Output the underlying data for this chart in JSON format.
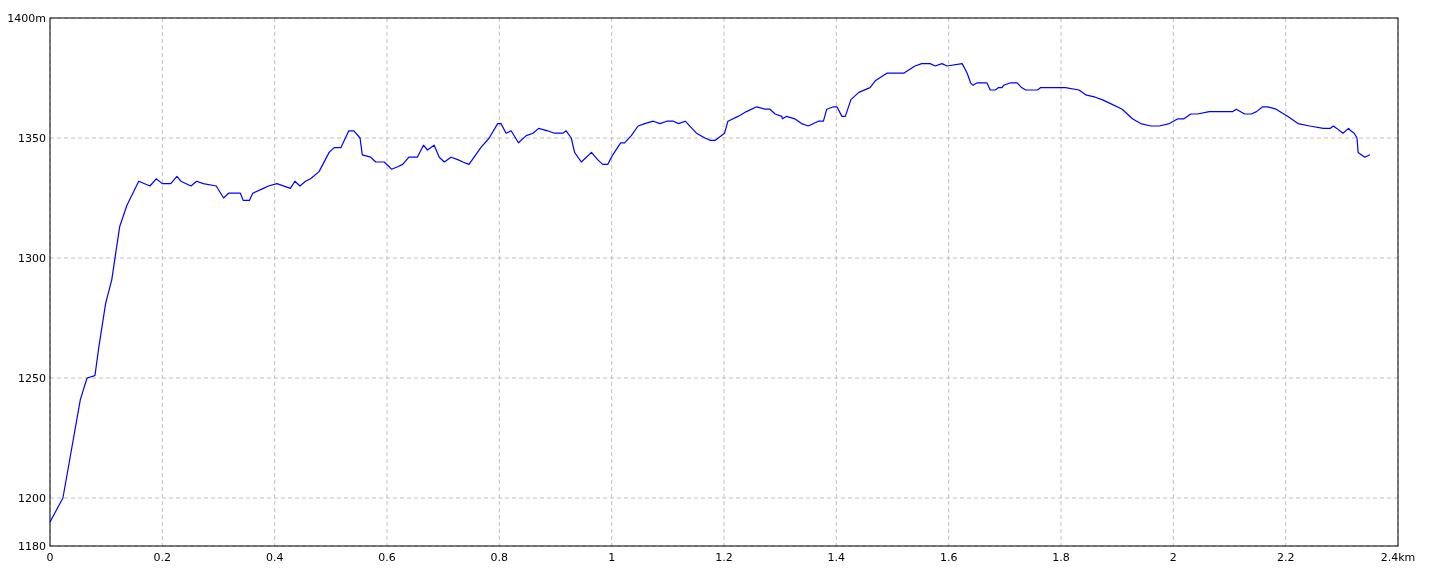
{
  "chart_data": {
    "type": "line",
    "x": [
      0,
      0.023,
      0.054,
      0.066,
      0.08,
      0.087,
      0.099,
      0.11,
      0.124,
      0.137,
      0.158,
      0.178,
      0.189,
      0.2,
      0.215,
      0.226,
      0.233,
      0.251,
      0.261,
      0.273,
      0.296,
      0.309,
      0.318,
      0.339,
      0.344,
      0.355,
      0.361,
      0.38,
      0.389,
      0.404,
      0.428,
      0.436,
      0.445,
      0.455,
      0.464,
      0.479,
      0.497,
      0.506,
      0.518,
      0.532,
      0.541,
      0.552,
      0.556,
      0.571,
      0.58,
      0.595,
      0.604,
      0.608,
      0.619,
      0.628,
      0.639,
      0.654,
      0.665,
      0.672,
      0.684,
      0.693,
      0.702,
      0.714,
      0.726,
      0.735,
      0.746,
      0.767,
      0.782,
      0.797,
      0.803,
      0.812,
      0.821,
      0.834,
      0.848,
      0.86,
      0.87,
      0.886,
      0.898,
      0.913,
      0.919,
      0.928,
      0.934,
      0.946,
      0.964,
      0.975,
      0.984,
      0.993,
      1.002,
      1.016,
      1.023,
      1.035,
      1.047,
      1.059,
      1.074,
      1.086,
      1.098,
      1.11,
      1.119,
      1.131,
      1.143,
      1.151,
      1.166,
      1.176,
      1.184,
      1.201,
      1.207,
      1.225,
      1.24,
      1.258,
      1.273,
      1.282,
      1.291,
      1.303,
      1.304,
      1.311,
      1.326,
      1.338,
      1.35,
      1.368,
      1.377,
      1.383,
      1.395,
      1.401,
      1.41,
      1.416,
      1.426,
      1.44,
      1.46,
      1.47,
      1.49,
      1.52,
      1.54,
      1.552,
      1.567,
      1.576,
      1.588,
      1.597,
      1.624,
      1.633,
      1.639,
      1.643,
      1.651,
      1.668,
      1.674,
      1.683,
      1.689,
      1.695,
      1.698,
      1.71,
      1.722,
      1.73,
      1.737,
      1.758,
      1.764,
      1.808,
      1.832,
      1.844,
      1.861,
      1.873,
      1.891,
      1.909,
      1.927,
      1.942,
      1.96,
      1.975,
      1.993,
      2.008,
      2.019,
      2.031,
      2.043,
      2.064,
      2.106,
      2.112,
      2.127,
      2.139,
      2.148,
      2.159,
      2.168,
      2.183,
      2.204,
      2.222,
      2.243,
      2.267,
      2.279,
      2.285,
      2.291,
      2.302,
      2.312,
      2.316,
      2.322,
      2.327,
      2.329,
      2.341,
      2.35
    ],
    "series": [
      {
        "color": "#0000ff",
        "values": [
          1190,
          1200,
          1241,
          1250,
          1251,
          1263,
          1281,
          1291,
          1313,
          1322,
          1332,
          1330,
          1333,
          1331,
          1331,
          1334,
          1332,
          1330,
          1332,
          1331,
          1330,
          1325,
          1327,
          1327,
          1324,
          1324,
          1327,
          1329,
          1330,
          1331,
          1329,
          1332,
          1330,
          1332,
          1333,
          1336,
          1344,
          1346,
          1346,
          1353,
          1353,
          1350,
          1343,
          1342,
          1340,
          1340,
          1338,
          1337,
          1338,
          1339,
          1342,
          1342,
          1347,
          1345,
          1347,
          1342,
          1340,
          1342,
          1341,
          1340,
          1339,
          1346,
          1350,
          1356,
          1356,
          1352,
          1353,
          1348,
          1351,
          1352,
          1354,
          1353,
          1352,
          1352,
          1353,
          1350,
          1344,
          1340,
          1344,
          1341,
          1339,
          1339,
          1343,
          1348,
          1348,
          1351,
          1355,
          1356,
          1357,
          1356,
          1357,
          1357,
          1356,
          1357,
          1354,
          1352,
          1350,
          1349,
          1349,
          1352,
          1357,
          1359,
          1361,
          1363,
          1362,
          1362,
          1360,
          1359,
          1358,
          1359,
          1358,
          1356,
          1355,
          1357,
          1357,
          1362,
          1363,
          1363,
          1359,
          1359,
          1366,
          1369,
          1371,
          1374,
          1377,
          1377,
          1380,
          1381,
          1381,
          1380,
          1381,
          1380,
          1381,
          1377,
          1373,
          1372,
          1373,
          1373,
          1370,
          1370,
          1371,
          1371,
          1372,
          1373,
          1373,
          1371,
          1370,
          1370,
          1371,
          1371,
          1370,
          1368,
          1367,
          1366,
          1364,
          1362,
          1358,
          1356,
          1355,
          1355,
          1356,
          1358,
          1358,
          1360,
          1360,
          1361,
          1361,
          1362,
          1360,
          1360,
          1361,
          1363,
          1363,
          1362,
          1359,
          1356,
          1355,
          1354,
          1354,
          1355,
          1354,
          1352,
          1354,
          1353,
          1352,
          1350,
          1344,
          1342,
          1343
        ]
      }
    ],
    "xlim": [
      0,
      2.4
    ],
    "xticks": [
      0,
      0.2,
      0.4,
      0.6,
      0.8,
      1,
      1.2,
      1.4,
      1.6,
      1.8,
      2,
      2.2,
      {
        "value": 2.4,
        "label": "2.4km"
      }
    ],
    "ylim": [
      1180,
      1400
    ],
    "yticks": [
      1180,
      1200,
      1250,
      1300,
      1350,
      {
        "value": 1400,
        "label": "1400m"
      }
    ],
    "grid": true,
    "marker": "none",
    "line_style": "solid"
  }
}
